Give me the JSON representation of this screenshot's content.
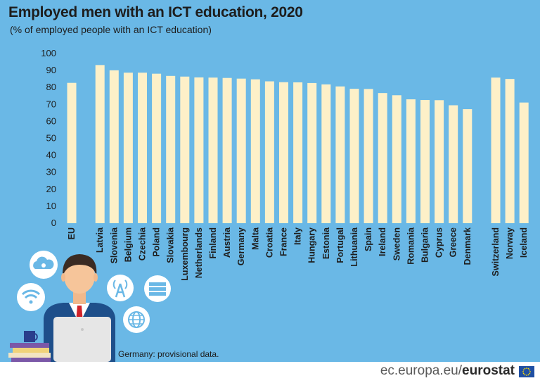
{
  "header": {
    "title": "Employed men with an ICT education, 2020",
    "subtitle": "(% of employed people with an ICT education)"
  },
  "footnote": "Germany: provisional data.",
  "footer": {
    "site_prefix": "ec.europa.eu/",
    "site_brand": "eurostat"
  },
  "colors": {
    "background": "#6ab8e6",
    "bar": "#fdf0c8",
    "text": "#1d1d1d"
  },
  "illustration": {
    "icons": [
      "cloud-icon",
      "wifi-icon",
      "antenna-icon",
      "server-icon",
      "globe-icon",
      "person-figure",
      "laptop-icon",
      "mug-icon",
      "books-icon"
    ]
  },
  "chart_data": {
    "type": "bar",
    "title": "Employed men with an ICT education, 2020",
    "subtitle": "(% of employed people with an ICT education)",
    "xlabel": "",
    "ylabel": "",
    "ylim": [
      0,
      100
    ],
    "yticks": [
      0,
      10,
      20,
      30,
      40,
      50,
      60,
      70,
      80,
      90,
      100
    ],
    "grid": false,
    "legend": "none",
    "categories": [
      "EU",
      "Latvia",
      "Slovenia",
      "Belgium",
      "Czechia",
      "Poland",
      "Slovakia",
      "Luxembourg",
      "Netherlands",
      "Finland",
      "Austria",
      "Germany",
      "Malta",
      "Croatia",
      "France",
      "Italy",
      "Hungary",
      "Estonia",
      "Portugal",
      "Lithuania",
      "Spain",
      "Ireland",
      "Sweden",
      "Romania",
      "Bulgaria",
      "Cyprus",
      "Greece",
      "Denmark",
      "Switzerland",
      "Norway",
      "Iceland"
    ],
    "groups": [
      1,
      27,
      3
    ],
    "values": [
      82.7,
      93.2,
      90.1,
      88.7,
      88.7,
      88.1,
      86.8,
      86.4,
      85.9,
      85.8,
      85.6,
      85.2,
      84.8,
      83.6,
      83.1,
      83.0,
      82.6,
      81.8,
      80.6,
      79.2,
      79.1,
      76.7,
      75.4,
      73.0,
      72.6,
      72.5,
      69.5,
      67.2,
      85.8,
      85.0,
      71.1
    ]
  }
}
